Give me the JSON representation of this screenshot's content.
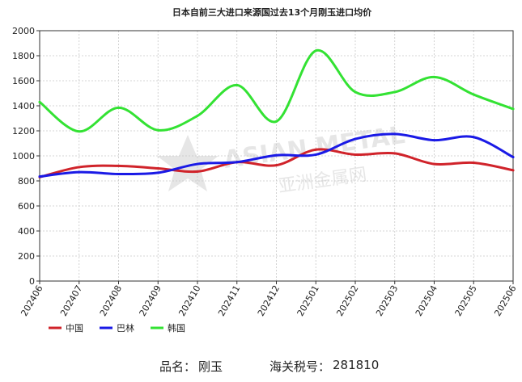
{
  "chart_data": {
    "type": "line",
    "title": "日本自前三大进口来源国过去13个月刚玉进口均价",
    "xlabel": "",
    "ylabel": "",
    "categories": [
      "202406",
      "202407",
      "202408",
      "202409",
      "202410",
      "202411",
      "202412",
      "202501",
      "202502",
      "202503",
      "202504",
      "202505",
      "202506"
    ],
    "ylim": [
      0,
      2000
    ],
    "yticks": [
      0,
      200,
      400,
      600,
      800,
      1000,
      1200,
      1400,
      1600,
      1800,
      2000
    ],
    "grid": true,
    "legend_position": "bottom-left",
    "series": [
      {
        "name": "中国",
        "color": "#d0232a",
        "values": [
          830,
          910,
          920,
          900,
          875,
          950,
          925,
          1050,
          1010,
          1020,
          935,
          945,
          885
        ]
      },
      {
        "name": "巴林",
        "color": "#1a1ae6",
        "values": [
          835,
          870,
          855,
          865,
          935,
          950,
          1005,
          1010,
          1135,
          1175,
          1125,
          1150,
          990
        ]
      },
      {
        "name": "韩国",
        "color": "#33e233",
        "values": [
          1430,
          1195,
          1385,
          1205,
          1320,
          1565,
          1275,
          1840,
          1510,
          1510,
          1630,
          1490,
          1375
        ]
      }
    ]
  },
  "watermark": {
    "text": "ASIAN METAL",
    "subtext": "亚洲金属网"
  },
  "footer": {
    "product_label": "品名：",
    "product_value": "刚玉",
    "hs_label": "海关税号：",
    "hs_value": "281810"
  }
}
